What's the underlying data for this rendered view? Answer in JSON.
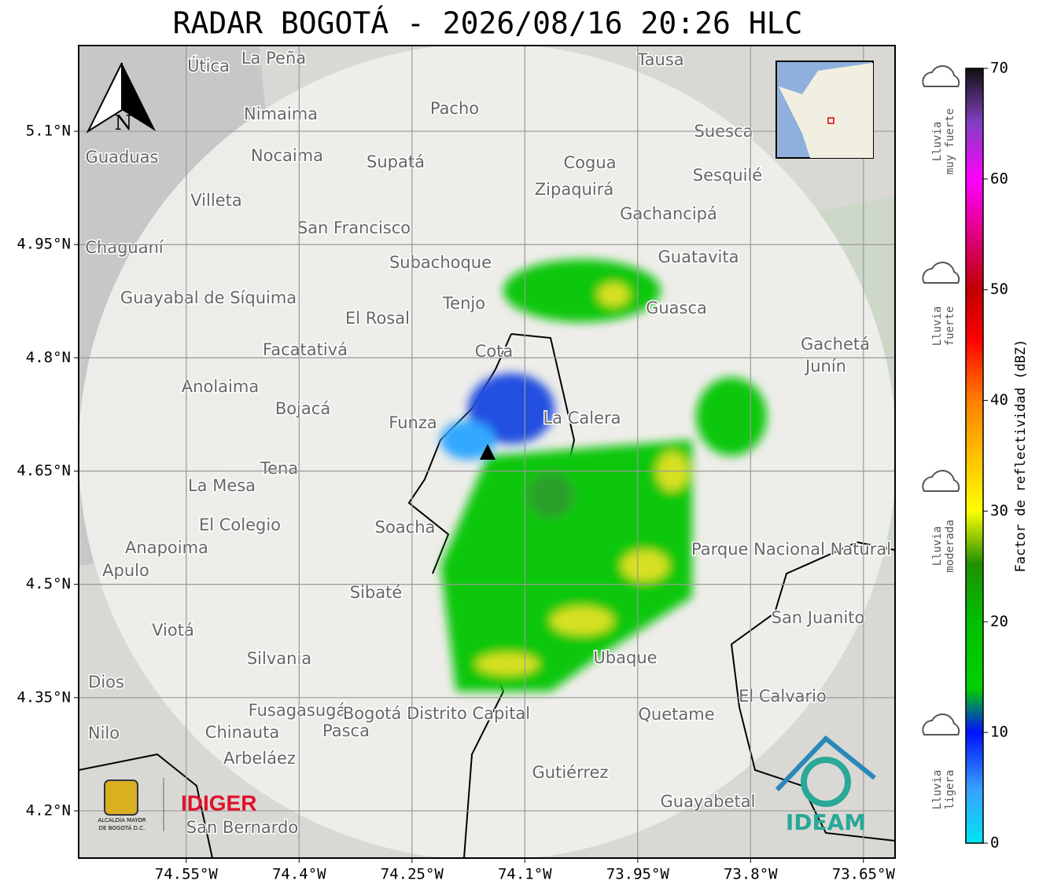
{
  "title": "RADAR BOGOTÁ - 2026/08/16 20:26 HLC",
  "map": {
    "xlim": [
      -74.693,
      -73.608
    ],
    "ylim": [
      4.1375,
      5.2135
    ],
    "xticks": [
      {
        "value": -74.55,
        "label": "74.55°W"
      },
      {
        "value": -74.4,
        "label": "74.4°W"
      },
      {
        "value": -74.25,
        "label": "74.25°W"
      },
      {
        "value": -74.1,
        "label": "74.1°W"
      },
      {
        "value": -73.95,
        "label": "73.95°W"
      },
      {
        "value": -73.8,
        "label": "73.8°W"
      },
      {
        "value": -73.65,
        "label": "73.65°W"
      }
    ],
    "yticks": [
      {
        "value": 5.1,
        "label": "5.1°N"
      },
      {
        "value": 4.95,
        "label": "4.95°N"
      },
      {
        "value": 4.8,
        "label": "4.8°N"
      },
      {
        "value": 4.65,
        "label": "4.65°N"
      },
      {
        "value": 4.5,
        "label": "4.5°N"
      },
      {
        "value": 4.35,
        "label": "4.35°N"
      },
      {
        "value": 4.2,
        "label": "4.2°N"
      }
    ],
    "grid": true,
    "places": [
      "La Peña",
      "Útica",
      "Tausa",
      "Pacho",
      "Nimaima",
      "Nocaima",
      "Supatá",
      "Guaduas",
      "Suesca",
      "Cogua",
      "Zipaquirá",
      "Sesquilé",
      "Villeta",
      "Gachancipá",
      "San Francisco",
      "Chaguaní",
      "Guatavita",
      "Subachoque",
      "Guayabal de Síquima",
      "Tenjo",
      "El Rosal",
      "Guasca",
      "Facatativá",
      "Cota",
      "Gachetá",
      "Junín",
      "Anolaima",
      "Bojacá",
      "Funza",
      "La Calera",
      "Tena",
      "La Mesa",
      "El Colegio",
      "Soacha",
      "Parque Nacional Natural Chingaza",
      "Anapoima",
      "Apulo",
      "Sibaté",
      "San Juanito",
      "Viotá",
      "Silvania",
      "Ubaque",
      "Dios",
      "El Calvario",
      "Fusagasugá",
      "Bogotá Distrito Capital",
      "Quetame",
      "Chinauta",
      "Pasca",
      "Nilo",
      "Arbeláez",
      "Gutiérrez",
      "Guayabetal",
      "San Bernardo"
    ],
    "compass": "N"
  },
  "colorbar": {
    "label": "Factor de reflectividad (dBZ)",
    "lim": [
      0,
      70
    ],
    "ticks": [
      0,
      10,
      20,
      30,
      40,
      50,
      60,
      70
    ]
  },
  "rain_levels": [
    [
      "Lluvia",
      "muy fuerte"
    ],
    [
      "Lluvia",
      "fuerte"
    ],
    [
      "Lluvia",
      "moderada"
    ],
    [
      "Lluvia",
      "ligera"
    ]
  ],
  "logos": {
    "idiger": "IDIGER",
    "ideam": "IDEAM",
    "alcaldia": [
      "ALCALDÍA MAYOR",
      "DE BOGOTÁ D.C."
    ]
  }
}
